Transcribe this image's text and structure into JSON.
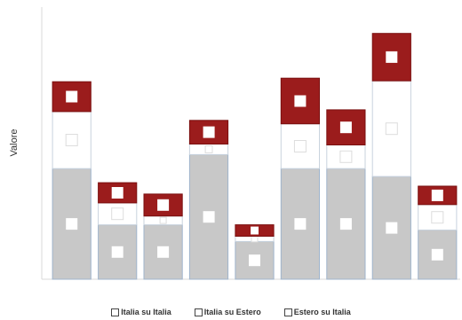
{
  "chart_data": {
    "type": "bar",
    "stacked": true,
    "title": "",
    "xlabel": "",
    "ylabel": "Valore",
    "categories": [
      "",
      "",
      "",
      "",
      "",
      "",
      "",
      "",
      ""
    ],
    "ylim": [
      0,
      310
    ],
    "grid": false,
    "legend_position": "bottom",
    "series": [
      {
        "name": "Italia su Italia",
        "color": "#c8c8c8",
        "values": [
          126,
          62,
          62,
          142,
          43,
          126,
          126,
          117,
          56
        ]
      },
      {
        "name": "Italia su Estero",
        "color": "#ffffff",
        "values": [
          65,
          25,
          10,
          12,
          6,
          51,
          27,
          109,
          29
        ]
      },
      {
        "name": "Estero su Italia",
        "color": "#9b1c1c",
        "values": [
          34,
          23,
          25,
          27,
          13,
          52,
          40,
          54,
          21
        ]
      }
    ]
  },
  "legend": {
    "items": [
      {
        "label": "Italia su Italia"
      },
      {
        "label": "Italia su Estero"
      },
      {
        "label": "Estero su Italia"
      }
    ]
  }
}
